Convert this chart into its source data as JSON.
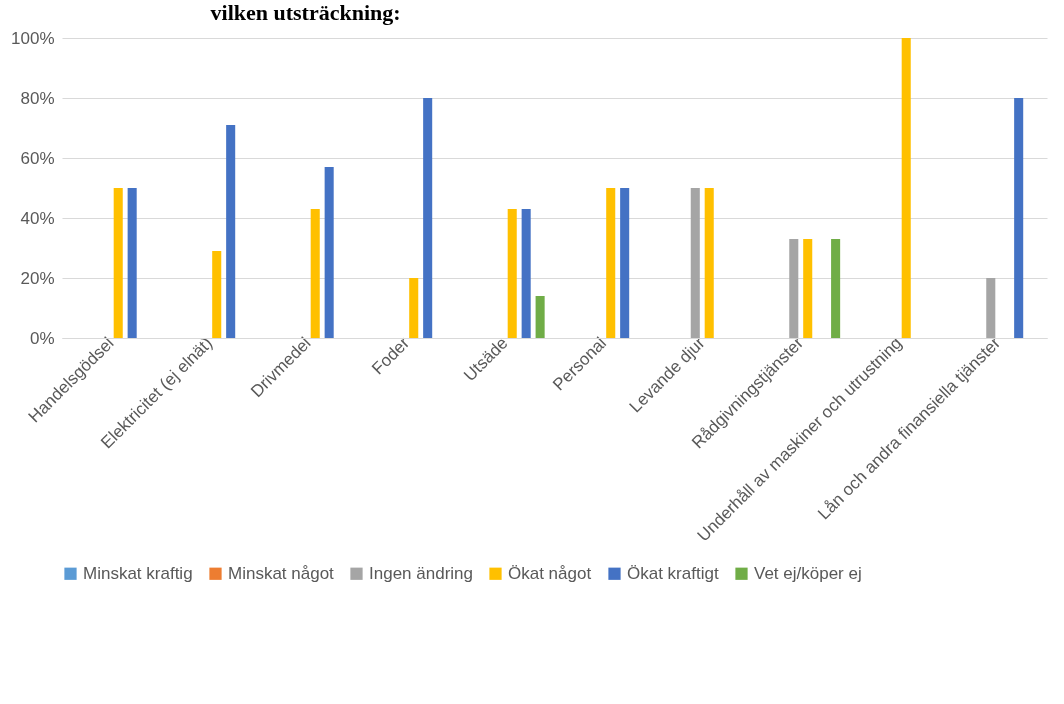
{
  "chart_data": {
    "type": "bar",
    "title": "vilken utsträckning:",
    "categories": [
      "Handelsgödsel",
      "Elektricitet (ej elnät)",
      "Drivmedel",
      "Foder",
      "Utsäde",
      "Personal",
      "Levande djur",
      "Rådgivningstjänster",
      "Underhåll av maskiner och utrustning",
      "Lån och andra finansiella tjänster"
    ],
    "series": [
      {
        "name": "Minskat kraftig",
        "color": "#5b9bd5",
        "values": [
          0,
          0,
          0,
          0,
          0,
          0,
          0,
          0,
          0,
          0
        ]
      },
      {
        "name": "Minskat något",
        "color": "#ed7d31",
        "values": [
          0,
          0,
          0,
          0,
          0,
          0,
          0,
          0,
          0,
          0
        ]
      },
      {
        "name": "Ingen ändring",
        "color": "#a5a5a5",
        "values": [
          0,
          0,
          0,
          0,
          0,
          0,
          50,
          33,
          0,
          20
        ]
      },
      {
        "name": "Ökat något",
        "color": "#ffc000",
        "values": [
          50,
          29,
          43,
          20,
          43,
          50,
          50,
          33,
          100,
          0
        ]
      },
      {
        "name": "Ökat kraftigt",
        "color": "#4472c4",
        "values": [
          50,
          71,
          57,
          80,
          43,
          50,
          0,
          0,
          0,
          80
        ]
      },
      {
        "name": "Vet ej/köper ej",
        "color": "#70ad47",
        "values": [
          0,
          0,
          0,
          0,
          14,
          0,
          0,
          33,
          0,
          0
        ]
      }
    ],
    "ylim": [
      0,
      100
    ],
    "yticks": [
      {
        "value": 0,
        "label": "0%"
      },
      {
        "value": 20,
        "label": "20%"
      },
      {
        "value": 40,
        "label": "40%"
      },
      {
        "value": 60,
        "label": "60%"
      },
      {
        "value": 80,
        "label": "80%"
      },
      {
        "value": 100,
        "label": "100%"
      }
    ],
    "grid": "y",
    "legend": "bottom"
  }
}
